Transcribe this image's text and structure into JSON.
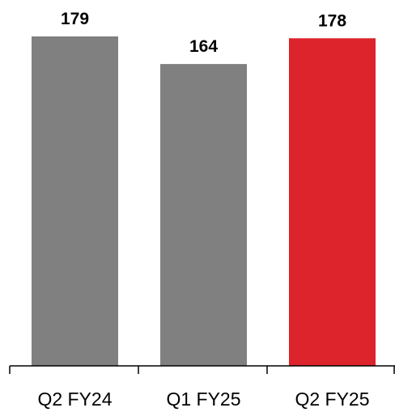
{
  "chart_data": {
    "type": "bar",
    "categories": [
      "Q2 FY24",
      "Q1 FY25",
      "Q2 FY25"
    ],
    "values": [
      179,
      164,
      178
    ],
    "data_labels": [
      "179",
      "164",
      "178"
    ],
    "bar_colors": [
      "#808080",
      "#808080",
      "#dd232b"
    ],
    "axis_color": "#000000",
    "grid": false,
    "title": "",
    "xlabel": "",
    "ylabel": ""
  }
}
